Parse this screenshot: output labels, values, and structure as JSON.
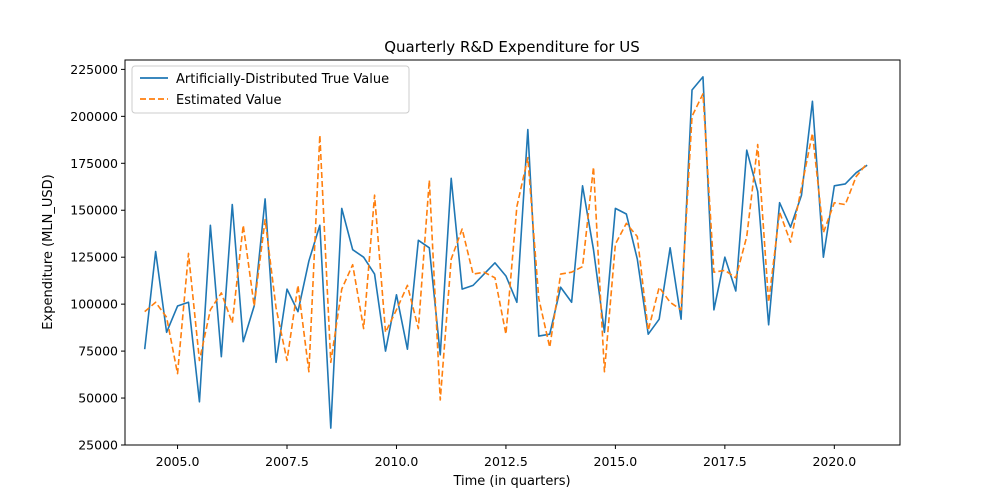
{
  "chart_data": {
    "type": "line",
    "title": "Quarterly R&D Expenditure for US",
    "xlabel": "Time (in quarters)",
    "ylabel": "Expenditure (MLN_USD)",
    "xlim": [
      2003.8,
      2021.5
    ],
    "ylim": [
      25000,
      230000
    ],
    "xticks": [
      2005.0,
      2007.5,
      2010.0,
      2012.5,
      2015.0,
      2017.5,
      2020.0
    ],
    "xtick_labels": [
      "2005.0",
      "2007.5",
      "2010.0",
      "2012.5",
      "2015.0",
      "2017.5",
      "2020.0"
    ],
    "yticks": [
      25000,
      50000,
      75000,
      100000,
      125000,
      150000,
      175000,
      200000,
      225000
    ],
    "ytick_labels": [
      "25000",
      "50000",
      "75000",
      "100000",
      "125000",
      "150000",
      "175000",
      "200000",
      "225000"
    ],
    "legend_position": "top-left",
    "grid": false,
    "x": [
      2004.25,
      2004.5,
      2004.75,
      2005.0,
      2005.25,
      2005.5,
      2005.75,
      2006.0,
      2006.25,
      2006.5,
      2006.75,
      2007.0,
      2007.25,
      2007.5,
      2007.75,
      2008.0,
      2008.25,
      2008.5,
      2008.75,
      2009.0,
      2009.25,
      2009.5,
      2009.75,
      2010.0,
      2010.25,
      2010.5,
      2010.75,
      2011.0,
      2011.25,
      2011.5,
      2011.75,
      2012.0,
      2012.25,
      2012.5,
      2012.75,
      2013.0,
      2013.25,
      2013.5,
      2013.75,
      2014.0,
      2014.25,
      2014.5,
      2014.75,
      2015.0,
      2015.25,
      2015.5,
      2015.75,
      2016.0,
      2016.25,
      2016.5,
      2016.75,
      2017.0,
      2017.25,
      2017.5,
      2017.75,
      2018.0,
      2018.25,
      2018.5,
      2018.75,
      2019.0,
      2019.25,
      2019.5,
      2019.75,
      2020.0,
      2020.25,
      2020.5,
      2020.75
    ],
    "series": [
      {
        "name": "Artificially-Distributed True Value",
        "color": "#1f77b4",
        "dash": "solid",
        "values": [
          76000,
          128000,
          85000,
          99000,
          101000,
          48000,
          142000,
          72000,
          153000,
          80000,
          99000,
          156000,
          69000,
          108000,
          96000,
          123000,
          142000,
          34000,
          151000,
          129000,
          125000,
          116000,
          75000,
          105000,
          76000,
          134000,
          130000,
          73000,
          167000,
          108000,
          110000,
          116000,
          122000,
          115000,
          101000,
          193000,
          83000,
          84000,
          109000,
          101000,
          163000,
          129000,
          85000,
          151000,
          148000,
          124000,
          84000,
          92000,
          130000,
          92000,
          214000,
          221000,
          97000,
          125000,
          107000,
          182000,
          160000,
          89000,
          154000,
          141000,
          158000,
          208000,
          125000,
          163000,
          164000,
          170000,
          174000
        ]
      },
      {
        "name": "Estimated Value",
        "color": "#ff7f0e",
        "dash": "dashed",
        "values": [
          96000,
          101000,
          93000,
          63000,
          127000,
          70000,
          97000,
          106000,
          90000,
          142000,
          99000,
          145000,
          98000,
          70000,
          110000,
          64000,
          190000,
          69000,
          108000,
          121000,
          87000,
          158000,
          85000,
          97000,
          110000,
          87000,
          166000,
          49000,
          124000,
          140000,
          116000,
          117000,
          114000,
          84000,
          152000,
          178000,
          103000,
          77000,
          116000,
          117000,
          120000,
          173000,
          64000,
          132000,
          143000,
          136000,
          86000,
          109000,
          101000,
          97000,
          200000,
          212000,
          117000,
          118000,
          114000,
          136000,
          185000,
          101000,
          149000,
          133000,
          162000,
          191000,
          138000,
          154000,
          153000,
          168000,
          175000
        ]
      }
    ]
  }
}
